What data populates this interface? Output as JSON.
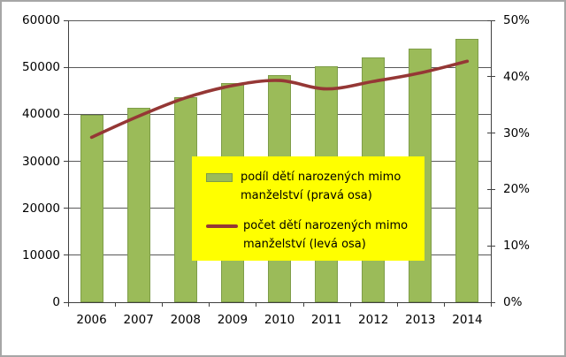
{
  "colors": {
    "bar_fill": "#9BBB59",
    "bar_border": "#7E9D48",
    "line": "#953735",
    "legend_bg": "#FFFF00",
    "grid": "#595959",
    "axis": "#404040",
    "text": "#000000",
    "chart_border": "#A6A6A6",
    "background": "#FFFFFF"
  },
  "chart_data": {
    "type": "combo (bar + line, dual axis)",
    "title": "",
    "categories": [
      "2006",
      "2007",
      "2008",
      "2009",
      "2010",
      "2011",
      "2012",
      "2013",
      "2014"
    ],
    "series": [
      {
        "name": "podíl dětí narozených mimo manželství (pravá osa)",
        "type": "bar",
        "axis": "right",
        "unit": "%",
        "values": [
          33.3,
          34.5,
          36.3,
          38.8,
          40.3,
          41.8,
          43.4,
          45.0,
          46.7
        ]
      },
      {
        "name": "počet dětí narozených mimo manželství (levá osa)",
        "type": "line",
        "axis": "left",
        "unit": "children",
        "values": [
          35100,
          39600,
          43500,
          46100,
          47200,
          45400,
          47000,
          48800,
          51300
        ]
      }
    ],
    "left_axis": {
      "min": 0,
      "max": 60000,
      "step": 10000,
      "tick_labels": [
        "0",
        "10000",
        "20000",
        "30000",
        "40000",
        "50000",
        "60000"
      ]
    },
    "right_axis": {
      "min": 0,
      "max": 50,
      "step": 10,
      "tick_labels": [
        "0%",
        "10%",
        "20%",
        "30%",
        "40%",
        "50%"
      ]
    },
    "grid": true,
    "legend_position": "center, yellow box overlay"
  }
}
